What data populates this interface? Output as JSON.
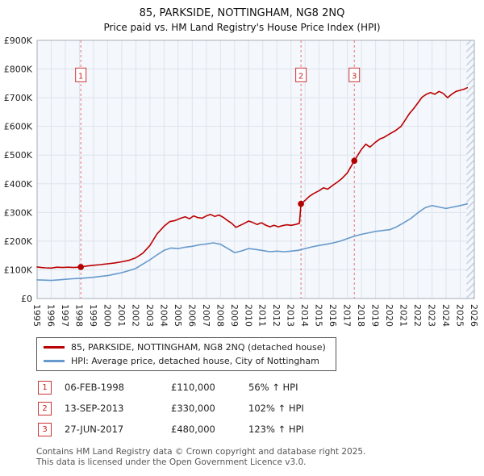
{
  "header": {
    "title": "85, PARKSIDE, NOTTINGHAM, NG8 2NQ",
    "subtitle": "Price paid vs. HM Land Registry's House Price Index (HPI)"
  },
  "chart_data": {
    "type": "line",
    "title": "85, PARKSIDE, NOTTINGHAM, NG8 2NQ — Price paid vs. HPI",
    "y_unit": "GBP thousands",
    "xlim": [
      1995,
      2026
    ],
    "ylim": [
      0,
      900
    ],
    "grid": true,
    "legend_position": "below",
    "x_ticks": [
      1995,
      1996,
      1997,
      1998,
      1999,
      2000,
      2001,
      2002,
      2003,
      2004,
      2005,
      2006,
      2007,
      2008,
      2009,
      2010,
      2011,
      2012,
      2013,
      2014,
      2015,
      2016,
      2017,
      2018,
      2019,
      2020,
      2021,
      2022,
      2023,
      2024,
      2025,
      2026
    ],
    "y_ticks": [
      {
        "value": 0,
        "label": "£0"
      },
      {
        "value": 100,
        "label": "£100K"
      },
      {
        "value": 200,
        "label": "£200K"
      },
      {
        "value": 300,
        "label": "£300K"
      },
      {
        "value": 400,
        "label": "£400K"
      },
      {
        "value": 500,
        "label": "£500K"
      },
      {
        "value": 600,
        "label": "£600K"
      },
      {
        "value": 700,
        "label": "£700K"
      },
      {
        "value": 800,
        "label": "£800K"
      },
      {
        "value": 900,
        "label": "£900K"
      }
    ],
    "future_hatch_start": 2025.45,
    "series": [
      {
        "name": "85, PARKSIDE, NOTTINGHAM, NG8 2NQ (detached house)",
        "color": "#bb0000",
        "points": [
          [
            1995.0,
            110
          ],
          [
            1995.3,
            108
          ],
          [
            1995.6,
            107
          ],
          [
            1996.0,
            106
          ],
          [
            1996.4,
            109
          ],
          [
            1996.8,
            108
          ],
          [
            1997.2,
            109
          ],
          [
            1997.6,
            108
          ],
          [
            1998.1,
            110
          ],
          [
            1998.5,
            113
          ],
          [
            1999.0,
            116
          ],
          [
            1999.5,
            118
          ],
          [
            2000.0,
            121
          ],
          [
            2000.5,
            124
          ],
          [
            2001.0,
            128
          ],
          [
            2001.5,
            133
          ],
          [
            2002.0,
            142
          ],
          [
            2002.5,
            158
          ],
          [
            2003.0,
            185
          ],
          [
            2003.5,
            225
          ],
          [
            2004.0,
            252
          ],
          [
            2004.4,
            268
          ],
          [
            2004.8,
            272
          ],
          [
            2005.2,
            280
          ],
          [
            2005.5,
            285
          ],
          [
            2005.8,
            278
          ],
          [
            2006.1,
            288
          ],
          [
            2006.4,
            282
          ],
          [
            2006.7,
            280
          ],
          [
            2007.0,
            288
          ],
          [
            2007.3,
            293
          ],
          [
            2007.6,
            286
          ],
          [
            2007.9,
            291
          ],
          [
            2008.2,
            283
          ],
          [
            2008.5,
            272
          ],
          [
            2008.8,
            262
          ],
          [
            2009.1,
            248
          ],
          [
            2009.4,
            255
          ],
          [
            2009.7,
            262
          ],
          [
            2010.0,
            270
          ],
          [
            2010.3,
            265
          ],
          [
            2010.6,
            258
          ],
          [
            2010.9,
            264
          ],
          [
            2011.2,
            256
          ],
          [
            2011.5,
            250
          ],
          [
            2011.8,
            255
          ],
          [
            2012.1,
            250
          ],
          [
            2012.4,
            254
          ],
          [
            2012.7,
            257
          ],
          [
            2013.0,
            255
          ],
          [
            2013.3,
            258
          ],
          [
            2013.6,
            262
          ],
          [
            2013.71,
            330
          ],
          [
            2014.0,
            342
          ],
          [
            2014.3,
            356
          ],
          [
            2014.6,
            366
          ],
          [
            2015.0,
            376
          ],
          [
            2015.3,
            386
          ],
          [
            2015.6,
            381
          ],
          [
            2016.0,
            396
          ],
          [
            2016.3,
            406
          ],
          [
            2016.6,
            418
          ],
          [
            2017.0,
            438
          ],
          [
            2017.49,
            480
          ],
          [
            2018.0,
            520
          ],
          [
            2018.3,
            538
          ],
          [
            2018.6,
            528
          ],
          [
            2019.0,
            545
          ],
          [
            2019.3,
            556
          ],
          [
            2019.6,
            562
          ],
          [
            2020.0,
            574
          ],
          [
            2020.4,
            585
          ],
          [
            2020.8,
            600
          ],
          [
            2021.1,
            622
          ],
          [
            2021.4,
            645
          ],
          [
            2021.7,
            662
          ],
          [
            2022.0,
            682
          ],
          [
            2022.3,
            702
          ],
          [
            2022.6,
            712
          ],
          [
            2022.9,
            718
          ],
          [
            2023.2,
            712
          ],
          [
            2023.5,
            722
          ],
          [
            2023.8,
            715
          ],
          [
            2024.1,
            700
          ],
          [
            2024.4,
            712
          ],
          [
            2024.7,
            722
          ],
          [
            2025.0,
            726
          ],
          [
            2025.3,
            730
          ],
          [
            2025.5,
            735
          ]
        ]
      },
      {
        "name": "HPI: Average price, detached house, City of Nottingham",
        "color": "#6699cc",
        "points": [
          [
            1995.0,
            65
          ],
          [
            1995.5,
            64
          ],
          [
            1996.0,
            63
          ],
          [
            1996.5,
            65
          ],
          [
            1997.0,
            67
          ],
          [
            1997.5,
            69
          ],
          [
            1998.0,
            70
          ],
          [
            1998.5,
            72
          ],
          [
            1999.0,
            74
          ],
          [
            1999.5,
            77
          ],
          [
            2000.0,
            80
          ],
          [
            2000.5,
            85
          ],
          [
            2001.0,
            90
          ],
          [
            2001.5,
            97
          ],
          [
            2002.0,
            105
          ],
          [
            2002.5,
            120
          ],
          [
            2003.0,
            135
          ],
          [
            2003.5,
            152
          ],
          [
            2004.0,
            168
          ],
          [
            2004.5,
            176
          ],
          [
            2005.0,
            174
          ],
          [
            2005.5,
            179
          ],
          [
            2006.0,
            182
          ],
          [
            2006.5,
            187
          ],
          [
            2007.0,
            190
          ],
          [
            2007.5,
            194
          ],
          [
            2008.0,
            189
          ],
          [
            2008.5,
            175
          ],
          [
            2009.0,
            160
          ],
          [
            2009.5,
            166
          ],
          [
            2010.0,
            174
          ],
          [
            2010.5,
            171
          ],
          [
            2011.0,
            167
          ],
          [
            2011.5,
            163
          ],
          [
            2012.0,
            165
          ],
          [
            2012.5,
            163
          ],
          [
            2013.0,
            165
          ],
          [
            2013.5,
            168
          ],
          [
            2014.0,
            174
          ],
          [
            2014.5,
            180
          ],
          [
            2015.0,
            185
          ],
          [
            2015.5,
            189
          ],
          [
            2016.0,
            194
          ],
          [
            2016.5,
            200
          ],
          [
            2017.0,
            209
          ],
          [
            2017.5,
            217
          ],
          [
            2018.0,
            224
          ],
          [
            2018.5,
            229
          ],
          [
            2019.0,
            234
          ],
          [
            2019.5,
            237
          ],
          [
            2020.0,
            240
          ],
          [
            2020.5,
            250
          ],
          [
            2021.0,
            264
          ],
          [
            2021.5,
            279
          ],
          [
            2022.0,
            299
          ],
          [
            2022.5,
            316
          ],
          [
            2023.0,
            324
          ],
          [
            2023.5,
            319
          ],
          [
            2024.0,
            314
          ],
          [
            2024.5,
            319
          ],
          [
            2025.0,
            324
          ],
          [
            2025.5,
            330
          ]
        ]
      }
    ],
    "sales": [
      {
        "num": "1",
        "x": 1998.1,
        "y": 110
      },
      {
        "num": "2",
        "x": 2013.71,
        "y": 330
      },
      {
        "num": "3",
        "x": 2017.49,
        "y": 480
      }
    ]
  },
  "legend": {
    "items": [
      {
        "label": "85, PARKSIDE, NOTTINGHAM, NG8 2NQ (detached house)",
        "color": "#bb0000"
      },
      {
        "label": "HPI: Average price, detached house, City of Nottingham",
        "color": "#6699cc"
      }
    ]
  },
  "transactions": [
    {
      "num": "1",
      "date": "06-FEB-1998",
      "price": "£110,000",
      "hpi": "56% ↑ HPI"
    },
    {
      "num": "2",
      "date": "13-SEP-2013",
      "price": "£330,000",
      "hpi": "102% ↑ HPI"
    },
    {
      "num": "3",
      "date": "27-JUN-2017",
      "price": "£480,000",
      "hpi": "123% ↑ HPI"
    }
  ],
  "footer": {
    "line1": "Contains HM Land Registry data © Crown copyright and database right 2025.",
    "line2": "This data is licensed under the Open Government Licence v3.0."
  }
}
